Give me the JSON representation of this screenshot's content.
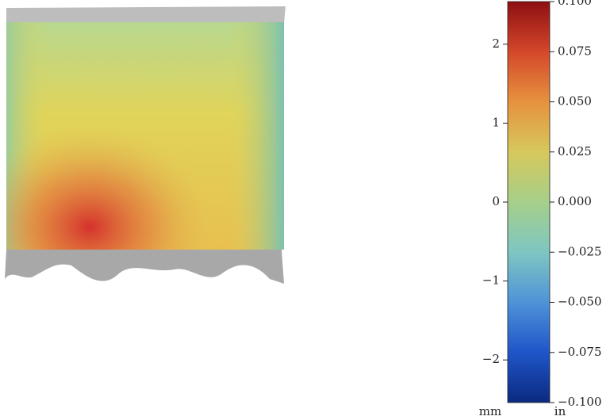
{
  "chart_data": {
    "type": "colorbar",
    "ylabel": "mm",
    "y2label": "in",
    "ylim": [
      -2.54,
      2.54
    ],
    "yticks": [
      {
        "value": -2,
        "label": "−2"
      },
      {
        "value": -1,
        "label": "−1"
      },
      0,
      1,
      2
    ],
    "y2lim": [
      -0.1,
      0.1
    ],
    "y2ticks": [
      {
        "value": -0.1,
        "label": "−0.100"
      },
      {
        "value": -0.075,
        "label": "−0.075"
      },
      {
        "value": -0.05,
        "label": "−0.050"
      },
      {
        "value": -0.025,
        "label": "−0.025"
      },
      {
        "value": 0,
        "label": "0.000"
      },
      {
        "value": 0.025,
        "label": "0.025"
      },
      {
        "value": 0.05,
        "label": "0.050"
      },
      {
        "value": 0.075,
        "label": "0.075"
      },
      {
        "value": 0.1,
        "label": "0.100"
      }
    ],
    "colormap": [
      "#0b2a80",
      "#1f55c8",
      "#4f93d8",
      "#7ec6c2",
      "#a6cf8a",
      "#d6c85c",
      "#e6923e",
      "#d4472a",
      "#8e0f12"
    ]
  }
}
